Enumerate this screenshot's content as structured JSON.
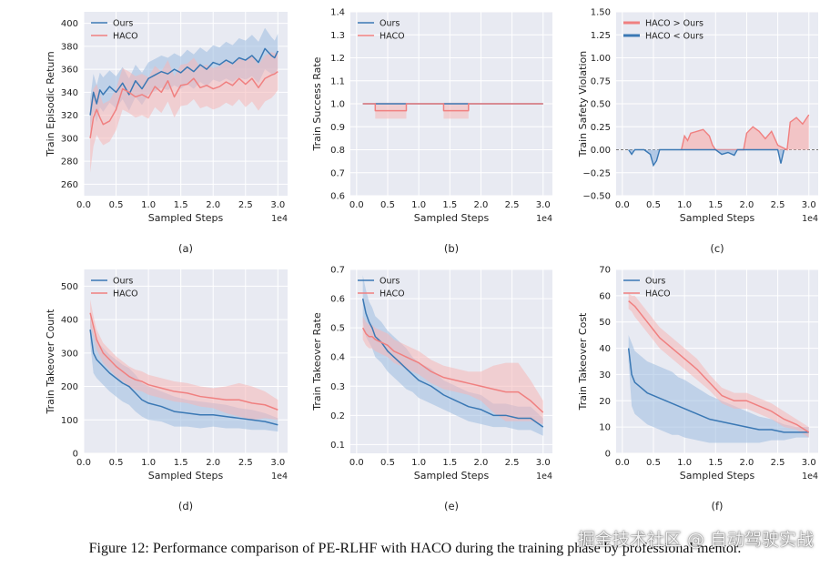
{
  "figure": {
    "caption": "Figure 12: Performance comparison of PE-RLHF with HACO during the training phase by professional mentor.",
    "watermark": "掘金技术社区 @ 自动驾驶实战",
    "colors": {
      "ours": "#3a78b4",
      "haco": "#f08080",
      "ours_band": "#9dbbe0",
      "haco_band": "#f6b7b7",
      "panel_bg": "#e8eaf2"
    }
  },
  "chart_data": [
    {
      "id": "a",
      "type": "line",
      "panel_label": "(a)",
      "xlabel": "Sampled Steps",
      "ylabel": "Train Episodic Return",
      "x_exponent": "1e4",
      "xlim": [
        0,
        3.15
      ],
      "ylim": [
        250,
        410
      ],
      "xticks": [
        0.0,
        0.5,
        1.0,
        1.5,
        2.0,
        2.5,
        3.0
      ],
      "xtick_labels": [
        "0.0",
        "0.5",
        "1.0",
        "1.5",
        "2.0",
        "2.5",
        "3.0"
      ],
      "yticks": [
        260,
        280,
        300,
        320,
        340,
        360,
        380,
        400
      ],
      "ytick_labels": [
        "260",
        "280",
        "300",
        "320",
        "340",
        "360",
        "380",
        "400"
      ],
      "legend": {
        "position": "top-left",
        "entries": [
          "Ours",
          "HACO"
        ]
      },
      "series": [
        {
          "name": "Ours",
          "color": "#3a78b4",
          "x": [
            0.1,
            0.15,
            0.2,
            0.25,
            0.3,
            0.4,
            0.5,
            0.6,
            0.7,
            0.8,
            0.9,
            1.0,
            1.1,
            1.2,
            1.3,
            1.4,
            1.5,
            1.6,
            1.7,
            1.8,
            1.9,
            2.0,
            2.1,
            2.2,
            2.3,
            2.4,
            2.5,
            2.6,
            2.7,
            2.8,
            2.9,
            2.95,
            3.0
          ],
          "y": [
            320,
            340,
            330,
            342,
            338,
            345,
            340,
            348,
            338,
            350,
            343,
            352,
            355,
            358,
            356,
            360,
            357,
            362,
            358,
            364,
            360,
            366,
            364,
            368,
            365,
            370,
            368,
            372,
            366,
            378,
            372,
            370,
            376
          ],
          "band": [
            14,
            16,
            16,
            15,
            15,
            14,
            14,
            14,
            14,
            14,
            14,
            14,
            14,
            14,
            14,
            14,
            14,
            15,
            15,
            15,
            15,
            15,
            15,
            16,
            16,
            17,
            17,
            18,
            18,
            18,
            16,
            15,
            15
          ]
        },
        {
          "name": "HACO",
          "color": "#f08080",
          "x": [
            0.1,
            0.15,
            0.2,
            0.25,
            0.3,
            0.4,
            0.5,
            0.6,
            0.7,
            0.8,
            0.9,
            1.0,
            1.1,
            1.2,
            1.3,
            1.4,
            1.5,
            1.6,
            1.7,
            1.8,
            1.9,
            2.0,
            2.1,
            2.2,
            2.3,
            2.4,
            2.5,
            2.6,
            2.7,
            2.8,
            2.9,
            2.95,
            3.0
          ],
          "y": [
            300,
            318,
            325,
            318,
            312,
            315,
            325,
            343,
            340,
            336,
            338,
            335,
            345,
            340,
            350,
            336,
            346,
            347,
            352,
            344,
            346,
            343,
            345,
            349,
            346,
            352,
            347,
            352,
            344,
            352,
            355,
            356,
            358
          ],
          "band": [
            30,
            25,
            22,
            20,
            18,
            18,
            18,
            18,
            18,
            18,
            18,
            18,
            18,
            18,
            18,
            18,
            18,
            18,
            18,
            18,
            18,
            18,
            18,
            18,
            18,
            18,
            20,
            20,
            20,
            20,
            20,
            18,
            16
          ]
        }
      ]
    },
    {
      "id": "b",
      "type": "line",
      "panel_label": "(b)",
      "xlabel": "Sampled Steps",
      "ylabel": "Train Success Rate",
      "x_exponent": "1e4",
      "xlim": [
        -0.1,
        3.15
      ],
      "ylim": [
        0.6,
        1.4
      ],
      "xticks": [
        0.0,
        0.5,
        1.0,
        1.5,
        2.0,
        2.5,
        3.0
      ],
      "xtick_labels": [
        "0.0",
        "0.5",
        "1.0",
        "1.5",
        "2.0",
        "2.5",
        "3.0"
      ],
      "yticks": [
        0.6,
        0.7,
        0.8,
        0.9,
        1.0,
        1.1,
        1.2,
        1.3,
        1.4
      ],
      "ytick_labels": [
        "0.6",
        "0.7",
        "0.8",
        "0.9",
        "1.0",
        "1.1",
        "1.2",
        "1.3",
        "1.4"
      ],
      "legend": {
        "position": "top-left",
        "entries": [
          "Ours",
          "HACO"
        ]
      },
      "series": [
        {
          "name": "Ours",
          "color": "#3a78b4",
          "x": [
            0.1,
            3.0
          ],
          "y": [
            1.0,
            1.0
          ],
          "band": [
            0,
            0
          ]
        },
        {
          "name": "HACO",
          "color": "#f08080",
          "x": [
            0.1,
            0.3,
            0.3,
            0.8,
            0.8,
            1.4,
            1.4,
            1.8,
            1.8,
            3.0
          ],
          "y": [
            1.0,
            1.0,
            0.97,
            0.97,
            1.0,
            1.0,
            0.97,
            0.97,
            1.0,
            1.0
          ],
          "band": [
            0,
            0,
            0.035,
            0.035,
            0,
            0,
            0.035,
            0.035,
            0,
            0
          ]
        }
      ]
    },
    {
      "id": "c",
      "type": "area",
      "panel_label": "(c)",
      "xlabel": "Sampled Steps",
      "ylabel": "Train Safety Violation",
      "x_exponent": "1e4",
      "xlim": [
        -0.1,
        3.15
      ],
      "ylim": [
        -0.5,
        1.5
      ],
      "xticks": [
        0.0,
        0.5,
        1.0,
        1.5,
        2.0,
        2.5,
        3.0
      ],
      "xtick_labels": [
        "0.0",
        "0.5",
        "1.0",
        "1.5",
        "2.0",
        "2.5",
        "3.0"
      ],
      "yticks": [
        -0.5,
        -0.25,
        0.0,
        0.25,
        0.5,
        0.75,
        1.0,
        1.25,
        1.5
      ],
      "ytick_labels": [
        "−0.50",
        "−0.25",
        "0.00",
        "0.25",
        "0.50",
        "0.75",
        "1.00",
        "1.25",
        "1.50"
      ],
      "legend": {
        "position": "top-left",
        "entries": [
          "HACO > Ours",
          "HACO < Ours"
        ]
      },
      "series": [
        {
          "name": "HACO > Ours",
          "color": "#f08080",
          "x": [
            0.95,
            1.0,
            1.05,
            1.1,
            1.2,
            1.3,
            1.4,
            1.45,
            1.5,
            1.95,
            2.0,
            2.1,
            2.2,
            2.3,
            2.4,
            2.5,
            2.65,
            2.7,
            2.8,
            2.9,
            3.0
          ],
          "y": [
            0.0,
            0.15,
            0.1,
            0.18,
            0.2,
            0.22,
            0.15,
            0.05,
            0.0,
            0.0,
            0.18,
            0.25,
            0.2,
            0.12,
            0.2,
            0.05,
            0.0,
            0.3,
            0.35,
            0.28,
            0.38
          ]
        },
        {
          "name": "HACO < Ours",
          "color": "#3a78b4",
          "x": [
            0.1,
            0.15,
            0.2,
            0.35,
            0.45,
            0.5,
            0.55,
            0.6,
            1.5,
            1.6,
            1.7,
            1.8,
            1.85,
            2.5,
            2.55,
            2.6
          ],
          "y": [
            0.0,
            -0.05,
            0.0,
            0.0,
            -0.05,
            -0.17,
            -0.12,
            0.0,
            0.0,
            -0.05,
            -0.03,
            -0.06,
            0.0,
            0.0,
            -0.15,
            0.0
          ]
        }
      ]
    },
    {
      "id": "d",
      "type": "line",
      "panel_label": "(d)",
      "xlabel": "Sampled Steps",
      "ylabel": "Train Takeover Count",
      "x_exponent": "1e4",
      "xlim": [
        0,
        3.15
      ],
      "ylim": [
        0,
        550
      ],
      "xticks": [
        0.0,
        0.5,
        1.0,
        1.5,
        2.0,
        2.5,
        3.0
      ],
      "xtick_labels": [
        "0.0",
        "0.5",
        "1.0",
        "1.5",
        "2.0",
        "2.5",
        "3.0"
      ],
      "yticks": [
        0,
        100,
        200,
        300,
        400,
        500
      ],
      "ytick_labels": [
        "0",
        "100",
        "200",
        "300",
        "400",
        "500"
      ],
      "legend": {
        "position": "top-left",
        "entries": [
          "Ours",
          "HACO"
        ]
      },
      "series": [
        {
          "name": "Ours",
          "color": "#3a78b4",
          "x": [
            0.1,
            0.15,
            0.2,
            0.3,
            0.4,
            0.5,
            0.6,
            0.7,
            0.8,
            0.9,
            1.0,
            1.2,
            1.4,
            1.6,
            1.8,
            2.0,
            2.2,
            2.4,
            2.6,
            2.8,
            3.0
          ],
          "y": [
            370,
            300,
            280,
            260,
            240,
            225,
            210,
            200,
            180,
            160,
            150,
            140,
            125,
            120,
            115,
            115,
            110,
            105,
            100,
            95,
            85
          ],
          "band": [
            40,
            60,
            55,
            55,
            55,
            55,
            55,
            55,
            55,
            50,
            50,
            45,
            45,
            40,
            40,
            35,
            35,
            30,
            30,
            25,
            20
          ]
        },
        {
          "name": "HACO",
          "color": "#f08080",
          "x": [
            0.1,
            0.15,
            0.2,
            0.3,
            0.4,
            0.5,
            0.6,
            0.7,
            0.8,
            0.9,
            1.0,
            1.2,
            1.4,
            1.6,
            1.8,
            2.0,
            2.2,
            2.4,
            2.6,
            2.8,
            3.0
          ],
          "y": [
            420,
            380,
            340,
            300,
            280,
            260,
            245,
            230,
            220,
            215,
            205,
            195,
            185,
            180,
            170,
            165,
            160,
            160,
            150,
            145,
            130
          ],
          "band": [
            40,
            30,
            30,
            30,
            30,
            30,
            30,
            30,
            30,
            30,
            30,
            30,
            30,
            30,
            30,
            30,
            40,
            50,
            50,
            40,
            30
          ]
        }
      ]
    },
    {
      "id": "e",
      "type": "line",
      "panel_label": "(e)",
      "xlabel": "Sampled Steps",
      "ylabel": "Train Takeover Rate",
      "x_exponent": "1e4",
      "xlim": [
        -0.1,
        3.15
      ],
      "ylim": [
        0.07,
        0.7
      ],
      "xticks": [
        0.0,
        0.5,
        1.0,
        1.5,
        2.0,
        2.5,
        3.0
      ],
      "xtick_labels": [
        "0.0",
        "0.5",
        "1.0",
        "1.5",
        "2.0",
        "2.5",
        "3.0"
      ],
      "yticks": [
        0.1,
        0.2,
        0.3,
        0.4,
        0.5,
        0.6,
        0.7
      ],
      "ytick_labels": [
        "0.1",
        "0.2",
        "0.3",
        "0.4",
        "0.5",
        "0.6",
        "0.7"
      ],
      "legend": {
        "position": "top-left",
        "entries": [
          "Ours",
          "HACO"
        ]
      },
      "series": [
        {
          "name": "Ours",
          "color": "#3a78b4",
          "x": [
            0.1,
            0.15,
            0.2,
            0.25,
            0.3,
            0.4,
            0.5,
            0.6,
            0.7,
            0.8,
            0.9,
            1.0,
            1.2,
            1.4,
            1.6,
            1.8,
            2.0,
            2.2,
            2.4,
            2.6,
            2.8,
            3.0
          ],
          "y": [
            0.6,
            0.55,
            0.52,
            0.5,
            0.47,
            0.45,
            0.42,
            0.4,
            0.38,
            0.36,
            0.34,
            0.32,
            0.3,
            0.27,
            0.25,
            0.23,
            0.22,
            0.2,
            0.2,
            0.19,
            0.19,
            0.16
          ],
          "band": [
            0.08,
            0.08,
            0.07,
            0.07,
            0.07,
            0.07,
            0.07,
            0.07,
            0.07,
            0.07,
            0.06,
            0.06,
            0.06,
            0.05,
            0.05,
            0.05,
            0.05,
            0.04,
            0.04,
            0.04,
            0.04,
            0.03
          ]
        },
        {
          "name": "HACO",
          "color": "#f08080",
          "x": [
            0.1,
            0.15,
            0.2,
            0.25,
            0.3,
            0.4,
            0.5,
            0.6,
            0.7,
            0.8,
            0.9,
            1.0,
            1.2,
            1.4,
            1.6,
            1.8,
            2.0,
            2.2,
            2.4,
            2.6,
            2.8,
            3.0
          ],
          "y": [
            0.5,
            0.48,
            0.47,
            0.47,
            0.46,
            0.45,
            0.44,
            0.42,
            0.41,
            0.4,
            0.39,
            0.38,
            0.35,
            0.33,
            0.32,
            0.31,
            0.3,
            0.29,
            0.28,
            0.28,
            0.25,
            0.21
          ],
          "band": [
            0.04,
            0.04,
            0.04,
            0.04,
            0.04,
            0.04,
            0.04,
            0.04,
            0.04,
            0.04,
            0.04,
            0.04,
            0.04,
            0.04,
            0.04,
            0.04,
            0.05,
            0.08,
            0.1,
            0.1,
            0.07,
            0.04
          ]
        }
      ]
    },
    {
      "id": "f",
      "type": "line",
      "panel_label": "(f)",
      "xlabel": "Sampled Steps",
      "ylabel": "Train Takeover Cost",
      "x_exponent": "1e4",
      "xlim": [
        -0.1,
        3.15
      ],
      "ylim": [
        0,
        70
      ],
      "xticks": [
        0.0,
        0.5,
        1.0,
        1.5,
        2.0,
        2.5,
        3.0
      ],
      "xtick_labels": [
        "0.0",
        "0.5",
        "1.0",
        "1.5",
        "2.0",
        "2.5",
        "3.0"
      ],
      "yticks": [
        0,
        10,
        20,
        30,
        40,
        50,
        60,
        70
      ],
      "ytick_labels": [
        "0",
        "10",
        "20",
        "30",
        "40",
        "50",
        "60",
        "70"
      ],
      "legend": {
        "position": "top-left",
        "entries": [
          "Ours",
          "HACO"
        ]
      },
      "series": [
        {
          "name": "Ours",
          "color": "#3a78b4",
          "x": [
            0.1,
            0.15,
            0.2,
            0.3,
            0.4,
            0.5,
            0.6,
            0.7,
            0.8,
            0.9,
            1.0,
            1.2,
            1.4,
            1.6,
            1.8,
            2.0,
            2.2,
            2.4,
            2.6,
            2.8,
            3.0
          ],
          "y": [
            40,
            30,
            27,
            25,
            23,
            22,
            21,
            20,
            19,
            18,
            17,
            15,
            13,
            12,
            11,
            10,
            9,
            9,
            8,
            8,
            8
          ],
          "band": [
            5,
            12,
            12,
            12,
            12,
            12,
            12,
            12,
            12,
            11,
            11,
            10,
            9,
            8,
            7,
            6,
            5,
            4,
            3,
            2,
            2
          ]
        },
        {
          "name": "HACO",
          "color": "#f08080",
          "x": [
            0.1,
            0.15,
            0.2,
            0.3,
            0.4,
            0.5,
            0.6,
            0.7,
            0.8,
            0.9,
            1.0,
            1.2,
            1.4,
            1.6,
            1.8,
            2.0,
            2.2,
            2.4,
            2.6,
            2.8,
            3.0
          ],
          "y": [
            58,
            57,
            56,
            53,
            50,
            47,
            44,
            42,
            40,
            38,
            36,
            32,
            27,
            22,
            20,
            20,
            18,
            16,
            13,
            11,
            8
          ],
          "band": [
            3,
            3,
            4,
            4,
            4,
            4,
            4,
            4,
            4,
            4,
            4,
            4,
            3,
            3,
            3,
            3,
            3,
            3,
            3,
            2,
            2
          ]
        }
      ]
    }
  ]
}
